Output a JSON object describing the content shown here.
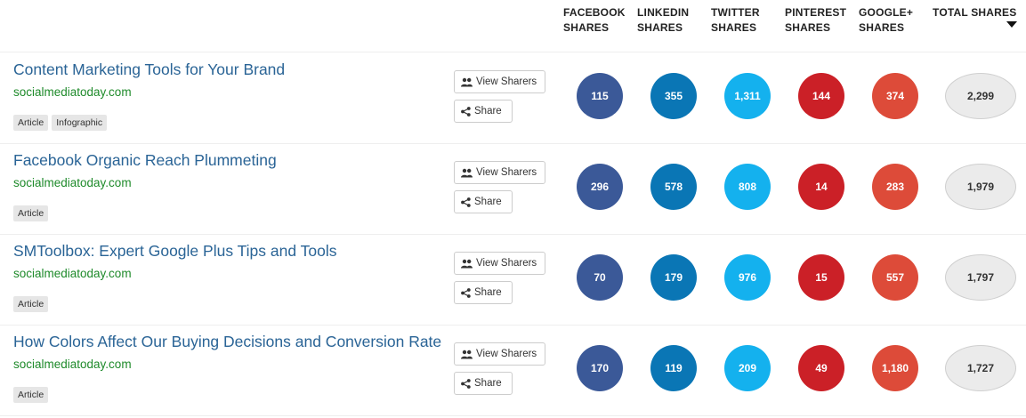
{
  "colors": {
    "facebook": "#3b5998",
    "linkedin": "#0a76b5",
    "twitter": "#14b1ee",
    "pinterest": "#cb2027",
    "googleplus": "#dd4b39",
    "title_link": "#2a6496",
    "domain": "#1e8a2a"
  },
  "columns": {
    "facebook": {
      "line1": "FACEBOOK",
      "line2": "SHARES"
    },
    "linkedin": {
      "line1": "LINKEDIN",
      "line2": "SHARES"
    },
    "twitter": {
      "line1": "TWITTER",
      "line2": "SHARES"
    },
    "pinterest": {
      "line1": "PINTEREST",
      "line2": "SHARES"
    },
    "googleplus": {
      "line1": "GOOGLE+",
      "line2": "SHARES"
    },
    "total": {
      "line1": "TOTAL SHARES",
      "line2": "",
      "sort_icon": "sort-descending-caret-icon"
    }
  },
  "buttons": {
    "view_sharers": {
      "label": "View Sharers",
      "icon": "users-icon"
    },
    "share": {
      "label": "Share",
      "icon": "share-icon"
    }
  },
  "rows": [
    {
      "title": "Content Marketing Tools for Your Brand",
      "domain": "socialmediatoday.com",
      "tags": [
        "Article",
        "Infographic"
      ],
      "facebook": "115",
      "linkedin": "355",
      "twitter": "1,311",
      "pinterest": "144",
      "googleplus": "374",
      "total": "2,299"
    },
    {
      "title": "Facebook Organic Reach Plummeting",
      "domain": "socialmediatoday.com",
      "tags": [
        "Article"
      ],
      "facebook": "296",
      "linkedin": "578",
      "twitter": "808",
      "pinterest": "14",
      "googleplus": "283",
      "total": "1,979"
    },
    {
      "title": "SMToolbox: Expert Google Plus Tips and Tools",
      "domain": "socialmediatoday.com",
      "tags": [
        "Article"
      ],
      "facebook": "70",
      "linkedin": "179",
      "twitter": "976",
      "pinterest": "15",
      "googleplus": "557",
      "total": "1,797"
    },
    {
      "title": "How Colors Affect Our Buying Decisions and Conversion Rate",
      "domain": "socialmediatoday.com",
      "tags": [
        "Article"
      ],
      "facebook": "170",
      "linkedin": "119",
      "twitter": "209",
      "pinterest": "49",
      "googleplus": "1,180",
      "total": "1,727"
    }
  ]
}
